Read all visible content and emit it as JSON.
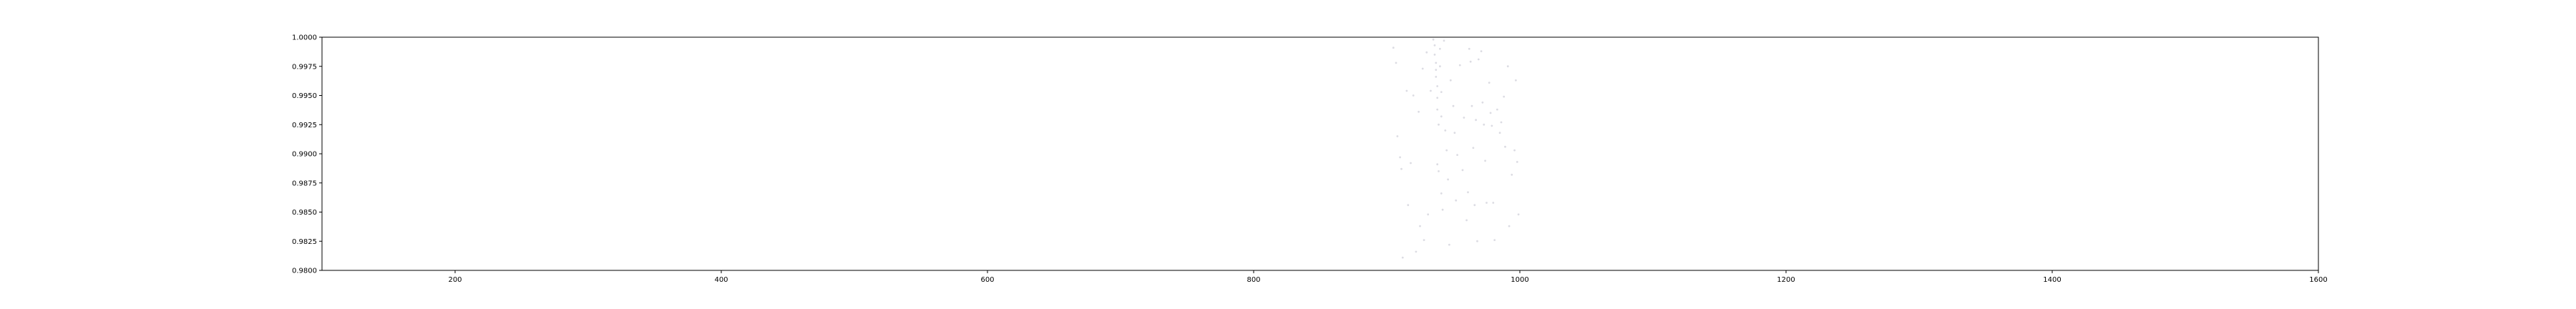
{
  "chart_data": {
    "type": "scatter",
    "title": "",
    "xlabel": "",
    "ylabel": "",
    "xlim": [
      100,
      1600
    ],
    "ylim": [
      0.98,
      1.0
    ],
    "x_ticks": [
      200,
      400,
      600,
      800,
      1000,
      1200,
      1400,
      1600
    ],
    "x_tick_labels": [
      "200",
      "400",
      "600",
      "800",
      "1000",
      "1200",
      "1400",
      "1600"
    ],
    "y_ticks": [
      0.98,
      0.9825,
      0.985,
      0.9875,
      0.99,
      0.9925,
      0.995,
      0.9975,
      1.0
    ],
    "y_tick_labels": [
      "0.9800",
      "0.9825",
      "0.9850",
      "0.9875",
      "0.9900",
      "0.9925",
      "0.9950",
      "0.9975",
      "1.0000"
    ],
    "grid": false,
    "legend": "none",
    "marker_color": "#d8d8e0",
    "series": [
      {
        "points": [
          [
            905,
            0.9991
          ],
          [
            907,
            0.9978
          ],
          [
            908,
            0.9915
          ],
          [
            910,
            0.9897
          ],
          [
            911,
            0.9887
          ],
          [
            912,
            0.9811
          ],
          [
            915,
            0.9954
          ],
          [
            916,
            0.9856
          ],
          [
            918,
            0.9892
          ],
          [
            920,
            0.995
          ],
          [
            922,
            0.9816
          ],
          [
            924,
            0.9936
          ],
          [
            925,
            0.9838
          ],
          [
            927,
            0.9973
          ],
          [
            928,
            0.9826
          ],
          [
            930,
            0.9987
          ],
          [
            931,
            0.9848
          ],
          [
            933,
            0.9954
          ],
          [
            935,
            0.9998
          ],
          [
            936,
            0.9993
          ],
          [
            936,
            0.9985
          ],
          [
            937,
            0.9978
          ],
          [
            937,
            0.9972
          ],
          [
            937,
            0.9966
          ],
          [
            938,
            0.9958
          ],
          [
            938,
            0.9948
          ],
          [
            938,
            0.9938
          ],
          [
            939,
            0.9925
          ],
          [
            938,
            0.9891
          ],
          [
            939,
            0.9885
          ],
          [
            940,
            0.999
          ],
          [
            940,
            0.9975
          ],
          [
            941,
            0.9953
          ],
          [
            941,
            0.9932
          ],
          [
            941,
            0.9866
          ],
          [
            942,
            0.9852
          ],
          [
            943,
            0.9997
          ],
          [
            944,
            0.992
          ],
          [
            945,
            0.9903
          ],
          [
            946,
            0.9878
          ],
          [
            947,
            0.9822
          ],
          [
            948,
            0.9963
          ],
          [
            950,
            0.9941
          ],
          [
            951,
            0.9918
          ],
          [
            952,
            0.986
          ],
          [
            953,
            0.9899
          ],
          [
            955,
            0.9976
          ],
          [
            957,
            0.9886
          ],
          [
            958,
            0.9931
          ],
          [
            960,
            0.9843
          ],
          [
            961,
            0.9867
          ],
          [
            962,
            0.999
          ],
          [
            963,
            0.9979
          ],
          [
            964,
            0.9941
          ],
          [
            965,
            0.9905
          ],
          [
            966,
            0.9856
          ],
          [
            967,
            0.9929
          ],
          [
            968,
            0.9825
          ],
          [
            969,
            0.9981
          ],
          [
            971,
            0.9988
          ],
          [
            972,
            0.9944
          ],
          [
            973,
            0.9925
          ],
          [
            974,
            0.9894
          ],
          [
            975,
            0.9858
          ],
          [
            977,
            0.9961
          ],
          [
            978,
            0.9935
          ],
          [
            979,
            0.9924
          ],
          [
            980,
            0.9858
          ],
          [
            981,
            0.9826
          ],
          [
            983,
            0.9938
          ],
          [
            985,
            0.9918
          ],
          [
            986,
            0.9927
          ],
          [
            988,
            0.9949
          ],
          [
            989,
            0.9906
          ],
          [
            991,
            0.9975
          ],
          [
            992,
            0.9838
          ],
          [
            994,
            0.9882
          ],
          [
            996,
            0.9903
          ],
          [
            997,
            0.9963
          ],
          [
            998,
            0.9893
          ],
          [
            999,
            0.9848
          ]
        ]
      }
    ]
  }
}
